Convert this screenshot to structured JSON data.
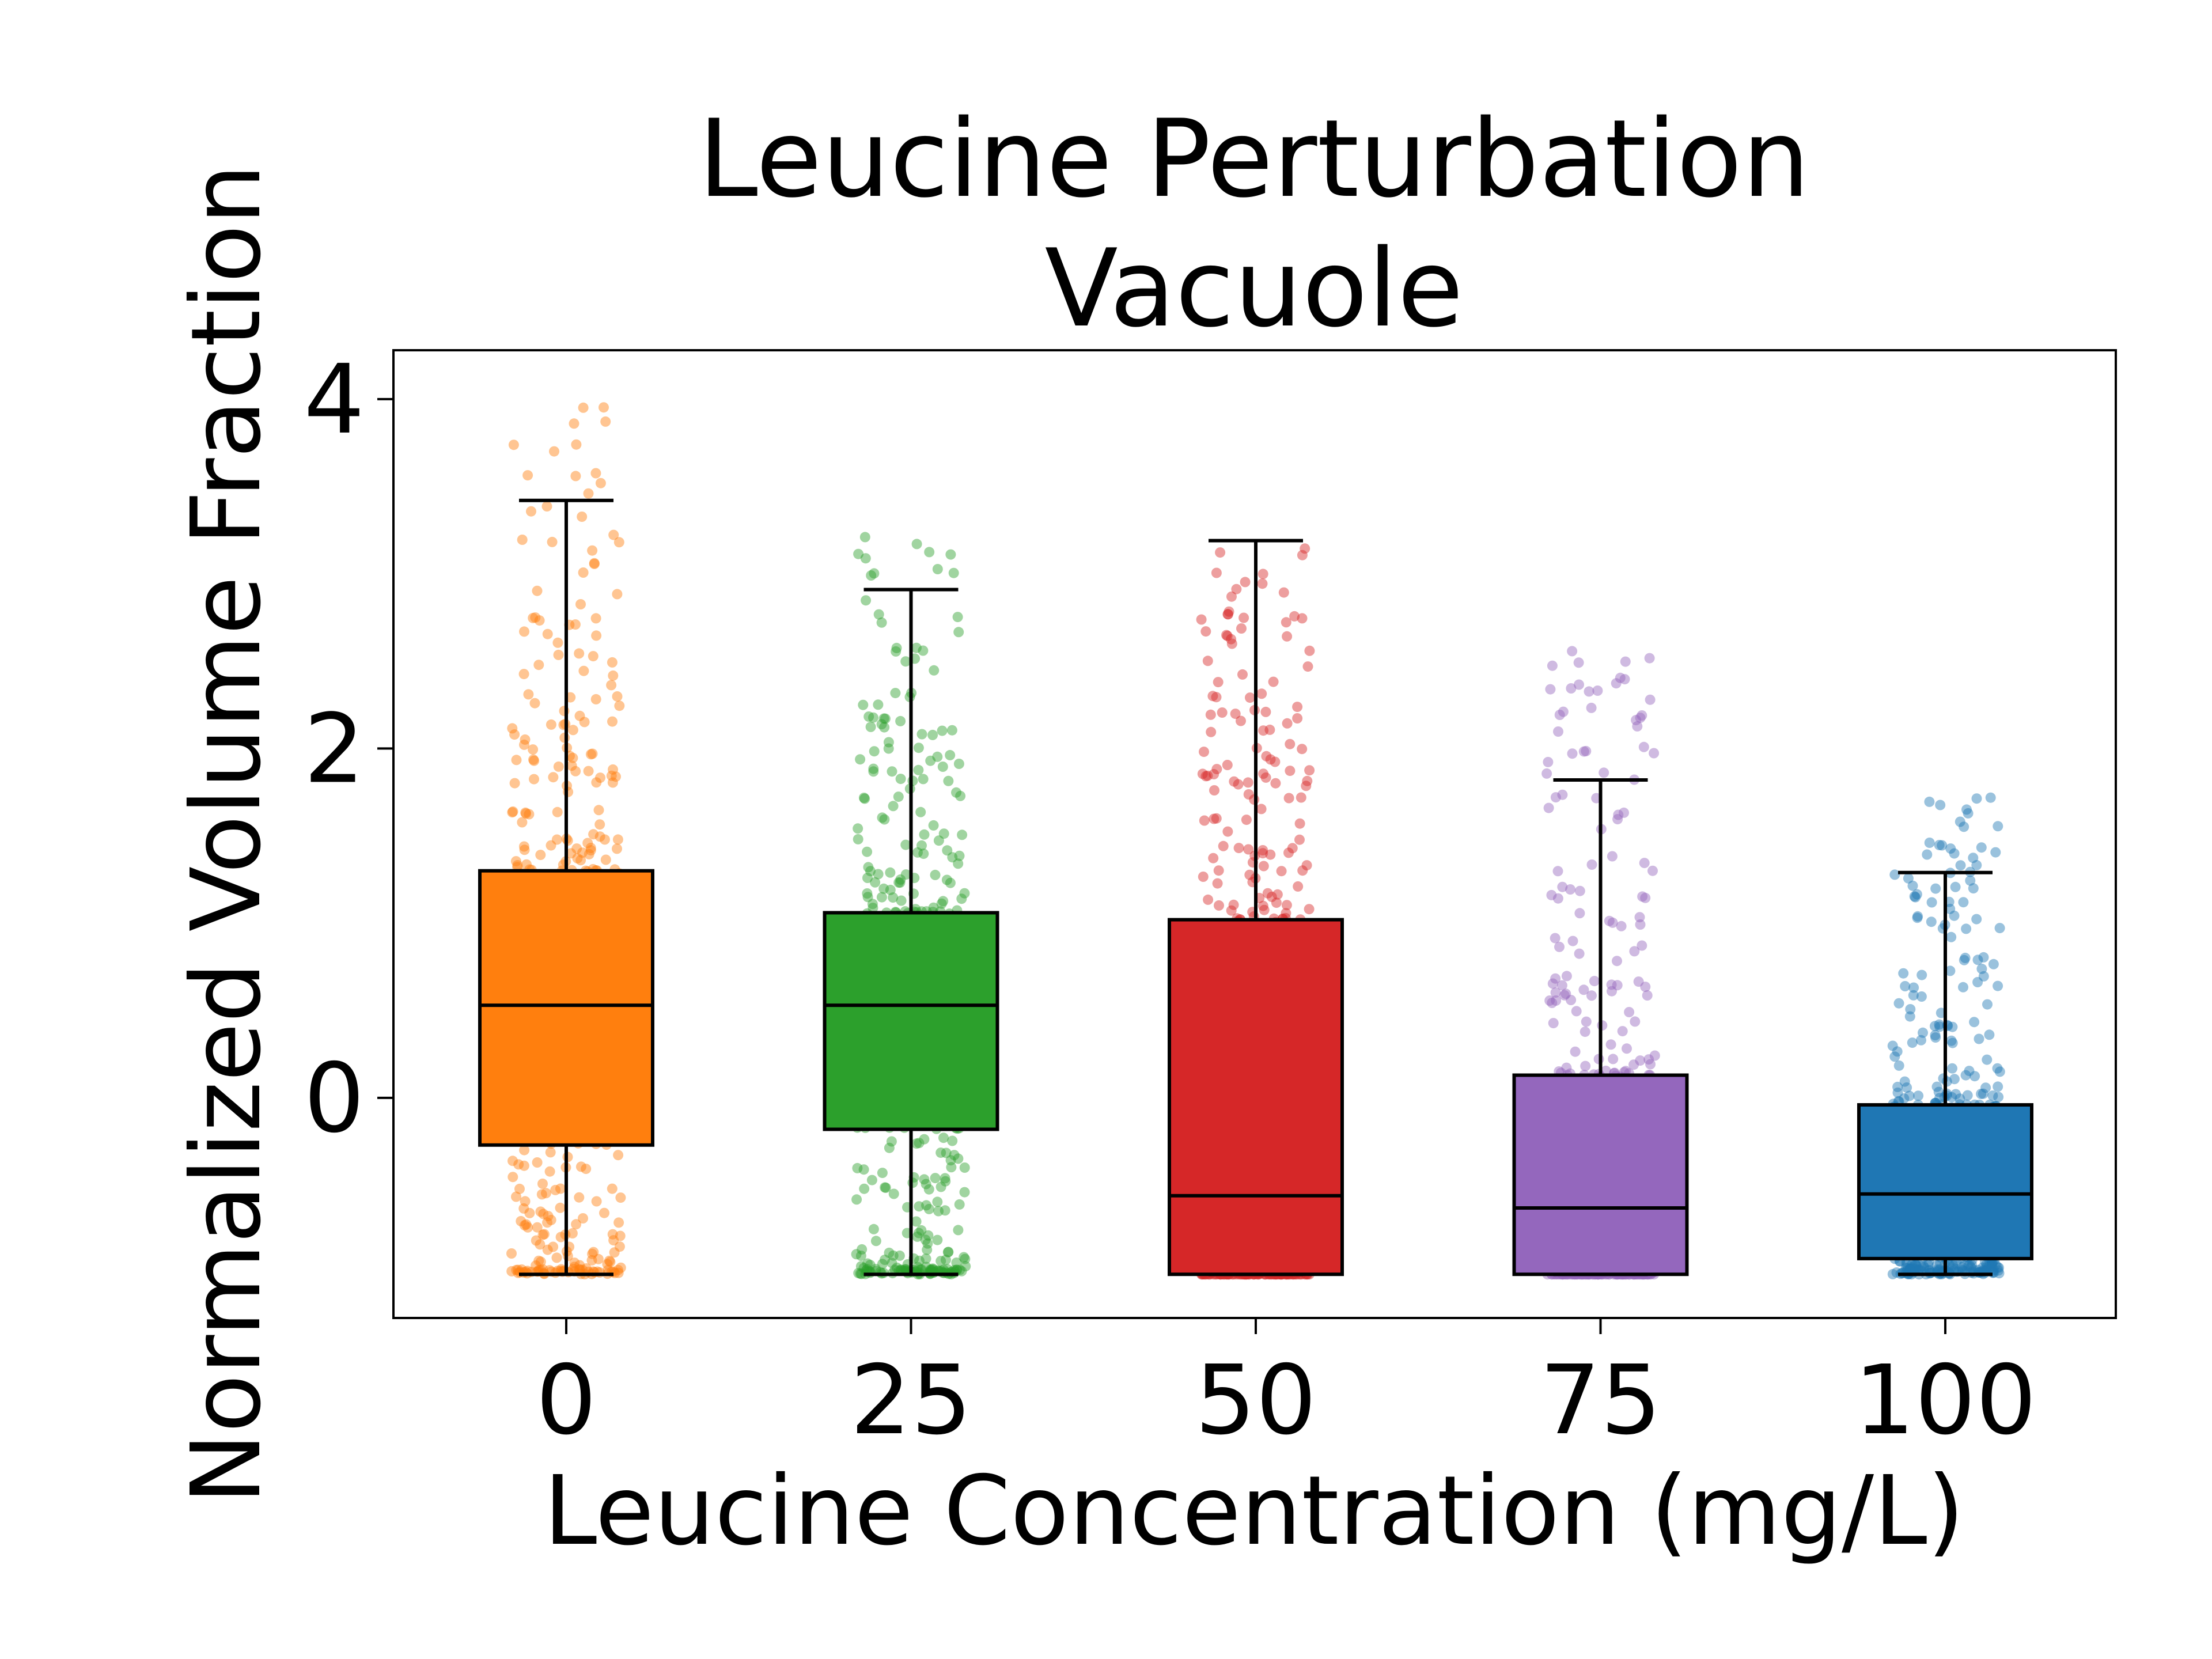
{
  "chart_data": {
    "type": "box",
    "title": [
      "Leucine Perturbation",
      "Vacuole"
    ],
    "xlabel": "Leucine Concentration (mg/L)",
    "ylabel": "Normalized Volume Fraction",
    "ylim": [
      -1.26,
      4.28
    ],
    "yticks": [
      0,
      2,
      4
    ],
    "grid": false,
    "categories": [
      "0",
      "25",
      "50",
      "75",
      "100"
    ],
    "colors": [
      "#ff7f0e",
      "#2ca02c",
      "#d62728",
      "#9467bd",
      "#1f77b4"
    ],
    "boxes": [
      {
        "category": "0",
        "whisker_low": -1.01,
        "q1": -0.27,
        "median": 0.53,
        "q3": 1.3,
        "whisker_high": 3.42
      },
      {
        "category": "25",
        "whisker_low": -1.01,
        "q1": -0.18,
        "median": 0.53,
        "q3": 1.06,
        "whisker_high": 2.91
      },
      {
        "category": "50",
        "whisker_low": -1.01,
        "q1": -1.01,
        "median": -0.56,
        "q3": 1.02,
        "whisker_high": 3.19
      },
      {
        "category": "75",
        "whisker_low": -1.01,
        "q1": -1.01,
        "median": -0.63,
        "q3": 0.13,
        "whisker_high": 1.82
      },
      {
        "category": "100",
        "whisker_low": -1.01,
        "q1": -0.92,
        "median": -0.55,
        "q3": -0.04,
        "whisker_high": 1.29
      }
    ],
    "points_per_group": 520,
    "points_max": [
      4.03,
      3.24,
      3.19,
      2.58,
      1.72
    ]
  }
}
